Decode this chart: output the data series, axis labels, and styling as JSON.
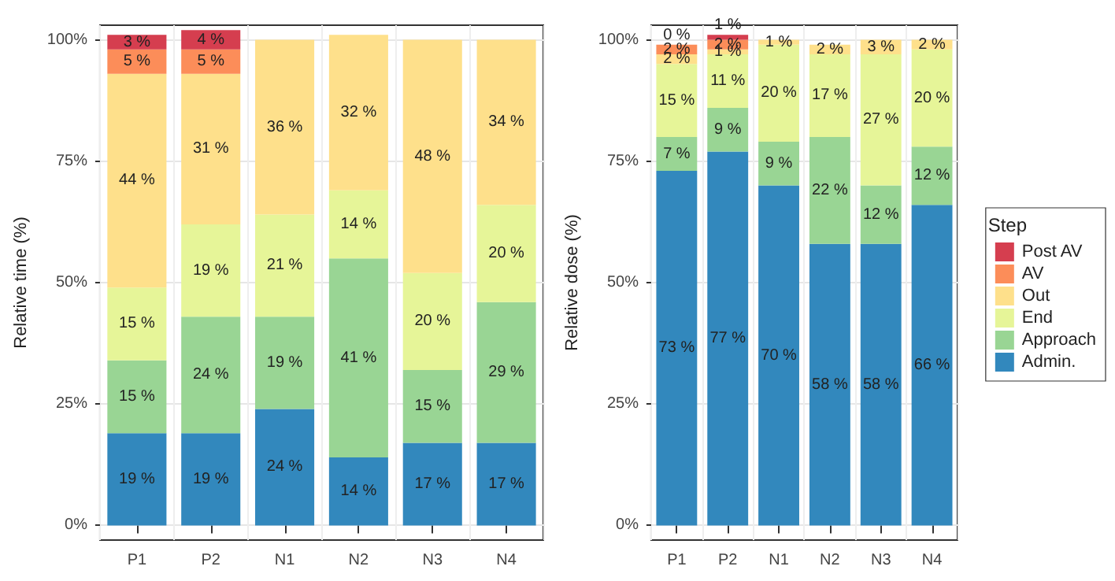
{
  "chart_data": [
    {
      "type": "bar",
      "stacked": true,
      "ylabel": "Relative time (%)",
      "categories": [
        "P1",
        "P2",
        "N1",
        "N2",
        "N3",
        "N4"
      ],
      "ylim": [
        -3,
        103
      ],
      "yticks": [
        {
          "value": 0,
          "label": "0%"
        },
        {
          "value": 25,
          "label": "25%"
        },
        {
          "value": 50,
          "label": "50%"
        },
        {
          "value": 75,
          "label": "75%"
        },
        {
          "value": 100,
          "label": "100%"
        }
      ],
      "grid": true,
      "legend": false,
      "series": [
        {
          "color": "#3288bd",
          "values": [
            19,
            19,
            24,
            14,
            17,
            17
          ],
          "value_labels": [
            "19 %",
            "19 %",
            "24 %",
            "14 %",
            "17 %",
            "17 %"
          ]
        },
        {
          "color": "#99d594",
          "values": [
            15,
            24,
            19,
            41,
            15,
            29
          ],
          "value_labels": [
            "15 %",
            "24 %",
            "19 %",
            "41 %",
            "15 %",
            "29 %"
          ]
        },
        {
          "color": "#e6f598",
          "values": [
            15,
            19,
            21,
            14,
            20,
            20
          ],
          "value_labels": [
            "15 %",
            "19 %",
            "21 %",
            "14 %",
            "20 %",
            "20 %"
          ]
        },
        {
          "color": "#fee08b",
          "values": [
            44,
            31,
            36,
            32,
            48,
            34
          ],
          "value_labels": [
            "44 %",
            "31 %",
            "36 %",
            "32 %",
            "48 %",
            "34 %"
          ]
        },
        {
          "color": "#fc8d59",
          "values": [
            5,
            5,
            null,
            null,
            null,
            null
          ],
          "value_labels": [
            "5 %",
            "5 %",
            null,
            null,
            null,
            null
          ]
        },
        {
          "color": "#d53e4f",
          "values": [
            3,
            4,
            null,
            null,
            null,
            null
          ],
          "value_labels": [
            "3 %",
            "4 %",
            null,
            null,
            null,
            null
          ]
        }
      ]
    },
    {
      "type": "bar",
      "stacked": true,
      "ylabel": "Relative dose (%)",
      "categories": [
        "P1",
        "P2",
        "N1",
        "N2",
        "N3",
        "N4"
      ],
      "ylim": [
        -3,
        103
      ],
      "yticks": [
        {
          "value": 0,
          "label": "0%"
        },
        {
          "value": 25,
          "label": "25%"
        },
        {
          "value": 50,
          "label": "50%"
        },
        {
          "value": 75,
          "label": "75%"
        },
        {
          "value": 100,
          "label": "100%"
        }
      ],
      "grid": true,
      "legend": "right",
      "legend_title": "Step",
      "series": [
        {
          "name": "Admin.",
          "color": "#3288bd",
          "values": [
            73,
            77,
            70,
            58,
            58,
            66
          ],
          "value_labels": [
            "73 %",
            "77 %",
            "70 %",
            "58 %",
            "58 %",
            "66 %"
          ]
        },
        {
          "name": "Approach",
          "color": "#99d594",
          "values": [
            7,
            9,
            9,
            22,
            12,
            12
          ],
          "value_labels": [
            "7 %",
            "9 %",
            "9 %",
            "22 %",
            "12 %",
            "12 %"
          ]
        },
        {
          "name": "End",
          "color": "#e6f598",
          "values": [
            15,
            11,
            20,
            17,
            27,
            20
          ],
          "value_labels": [
            "15 %",
            "11 %",
            "20 %",
            "17 %",
            "27 %",
            "20 %"
          ]
        },
        {
          "name": "Out",
          "color": "#fee08b",
          "values": [
            2,
            1,
            1,
            2,
            3,
            2
          ],
          "value_labels": [
            "2 %",
            "1 %",
            "1 %",
            "2 %",
            "3 %",
            "2 %"
          ]
        },
        {
          "name": "AV",
          "color": "#fc8d59",
          "values": [
            2,
            2,
            null,
            null,
            null,
            null
          ],
          "value_labels": [
            "2 %",
            "2 %",
            null,
            null,
            null,
            null
          ]
        },
        {
          "name": "Post AV",
          "color": "#d53e4f",
          "values": [
            0,
            1,
            null,
            null,
            null,
            null
          ],
          "value_labels": [
            "0 %",
            "1 %",
            null,
            null,
            null,
            null
          ]
        }
      ]
    }
  ]
}
